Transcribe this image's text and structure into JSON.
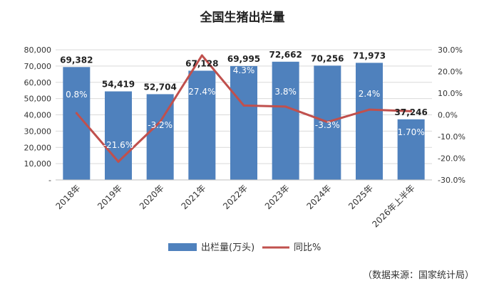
{
  "chart_data": {
    "type": "bar",
    "title": "全国生猪出栏量",
    "categories": [
      "2018年",
      "2019年",
      "2020年",
      "2021年",
      "2022年",
      "2023年",
      "2024年",
      "2025年",
      "2026年上半年"
    ],
    "series": [
      {
        "name": "出栏量(万头)",
        "type": "bar",
        "axis": "left",
        "color": "#4f81bd",
        "values": [
          69382,
          54419,
          52704,
          67128,
          69995,
          72662,
          70256,
          71973,
          37246
        ],
        "labels": [
          "69,382",
          "54,419",
          "52,704",
          "67,128",
          "69,995",
          "72,662",
          "70,256",
          "71,973",
          "37,246"
        ]
      },
      {
        "name": "同比%",
        "type": "line",
        "axis": "right",
        "color": "#c0504d",
        "values": [
          0.8,
          -21.6,
          -3.2,
          27.4,
          4.3,
          3.8,
          -3.3,
          2.4,
          1.7
        ],
        "labels": [
          "0.8%",
          "-21.6%",
          "-3.2%",
          "27.4%",
          "4.3%",
          "3.8%",
          "-3.3%",
          "2.4%",
          "1.70%"
        ]
      }
    ],
    "y_left": {
      "range": [
        0,
        80000
      ],
      "ticks": [
        0,
        10000,
        20000,
        30000,
        40000,
        50000,
        60000,
        70000,
        80000
      ],
      "tick_labels": [
        "-",
        "10,000",
        "20,000",
        "30,000",
        "40,000",
        "50,000",
        "60,000",
        "70,000",
        "80,000"
      ]
    },
    "y_right": {
      "range": [
        -30,
        30
      ],
      "ticks": [
        -30,
        -20,
        -10,
        0,
        10,
        20,
        30
      ],
      "tick_labels": [
        "-30.0%",
        "-20.0%",
        "-10.0%",
        "0.0%",
        "10.0%",
        "20.0%",
        "30.0%"
      ]
    },
    "grid": true,
    "legend": "bottom",
    "source": "（数据来源：国家统计局）"
  }
}
